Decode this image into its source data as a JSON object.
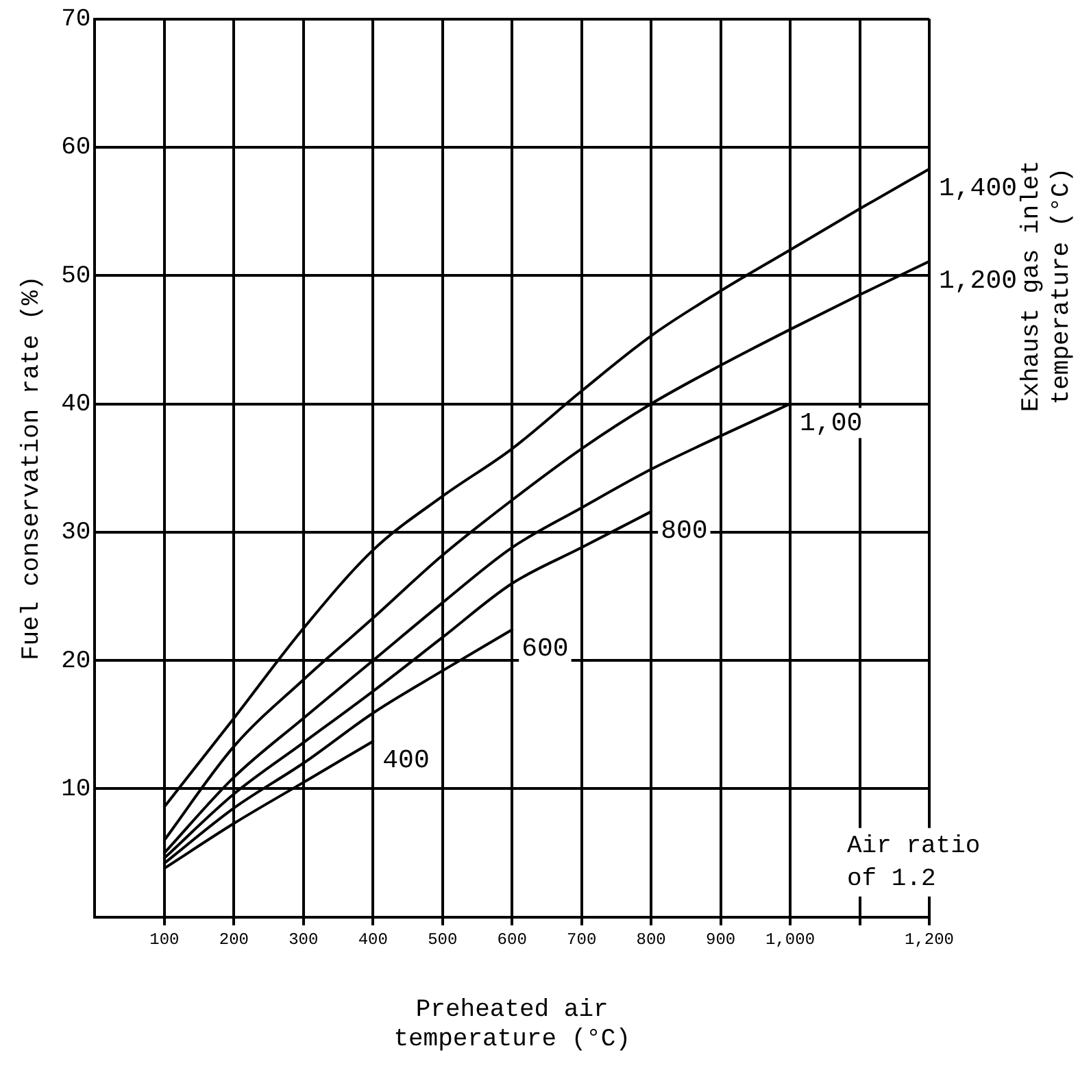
{
  "chart_data": {
    "type": "line",
    "xlabel": "Preheated air\ntemperature (°C)",
    "ylabel": "Fuel conservation rate (%)",
    "legend_title": "Exhaust gas inlet\ntemperature (°C)",
    "annotations": [
      "Air ratio\nof 1.2"
    ],
    "x": [
      100,
      200,
      300,
      400,
      500,
      600,
      700,
      800,
      900,
      1000,
      1100,
      1200
    ],
    "series": [
      {
        "name": "1,400",
        "color": "#000000",
        "values": [
          8.6,
          15.5,
          22.5,
          28.6,
          32.8,
          36.5,
          41,
          45.3,
          48.8,
          52,
          55.2,
          58.3
        ]
      },
      {
        "name": "1,200",
        "color": "#000000",
        "values": [
          6.0,
          13.3,
          18.5,
          23.3,
          28.2,
          32.5,
          36.5,
          40,
          43,
          45.8,
          48.5,
          51.1
        ]
      },
      {
        "name": "1,00",
        "color": "#000000",
        "values": [
          5.0,
          10.9,
          15.5,
          20,
          24.5,
          28.8,
          31.9,
          34.9,
          37.5,
          40,
          null,
          null
        ]
      },
      {
        "name": "800",
        "color": "#000000",
        "values": [
          4.6,
          9.6,
          13.6,
          17.6,
          21.8,
          26,
          28.8,
          31.6,
          null,
          null,
          null,
          null
        ]
      },
      {
        "name": "600",
        "color": "#000000",
        "values": [
          4.2,
          8.5,
          12,
          15.9,
          19.2,
          22.4,
          null,
          null,
          null,
          null,
          null,
          null
        ]
      },
      {
        "name": "400",
        "color": "#000000",
        "values": [
          3.8,
          7.3,
          10.5,
          13.7,
          null,
          null,
          null,
          null,
          null,
          null,
          null,
          null
        ]
      }
    ],
    "xlim": [
      0,
      1200
    ],
    "xticks": [
      100,
      200,
      300,
      400,
      500,
      600,
      700,
      800,
      900,
      {
        "value": 1000,
        "label": "1,000"
      },
      {
        "value": 1100,
        "label": null
      },
      {
        "value": 1200,
        "label": "1,200"
      }
    ],
    "ylim": [
      0,
      70
    ],
    "yticks": [
      10,
      20,
      30,
      40,
      50,
      60,
      70
    ],
    "grid": true,
    "legend": false,
    "marker": "none",
    "line_style": "solid"
  }
}
